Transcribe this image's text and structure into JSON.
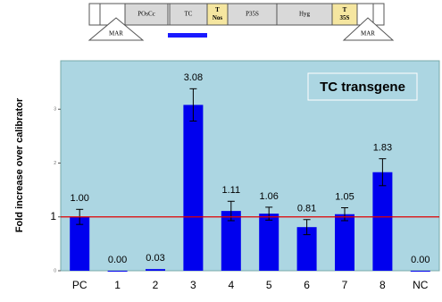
{
  "construct": {
    "segments": [
      {
        "lines": [
          "POsCc"
        ],
        "color": "#d9d9d9"
      },
      {
        "lines": [
          "TC"
        ],
        "color": "#d9d9d9"
      },
      {
        "lines": [
          "T",
          "Nos"
        ],
        "color": "#f5e6a0"
      },
      {
        "lines": [
          "P35S"
        ],
        "color": "#d9d9d9"
      },
      {
        "lines": [
          "Hyg"
        ],
        "color": "#d9d9d9"
      },
      {
        "lines": [
          "T",
          "35S"
        ],
        "color": "#f5e6a0"
      }
    ],
    "mar_labels": [
      "MAR",
      "MAR"
    ]
  },
  "chart_data": {
    "type": "bar",
    "annotation": "TC transgene",
    "ylabel": "Fold increase over calibrator",
    "categories": [
      "PC",
      "1",
      "2",
      "3",
      "4",
      "5",
      "6",
      "7",
      "8",
      "NC"
    ],
    "values": [
      1.0,
      0.0,
      0.03,
      3.08,
      1.11,
      1.06,
      0.81,
      1.05,
      1.83,
      0.0
    ],
    "value_labels": [
      "1.00",
      "0.00",
      "0.03",
      "3.08",
      "1.11",
      "1.06",
      "0.81",
      "1.05",
      "1.83",
      "0.00"
    ],
    "errors": [
      0.14,
      0,
      0,
      0.3,
      0.18,
      0.12,
      0.14,
      0.12,
      0.25,
      0
    ],
    "color": "#0000ee",
    "ylim": [
      0,
      3.9
    ],
    "yticks": [
      0,
      1,
      2,
      3
    ],
    "reference_line": {
      "value": 1,
      "color": "#e00000"
    }
  }
}
